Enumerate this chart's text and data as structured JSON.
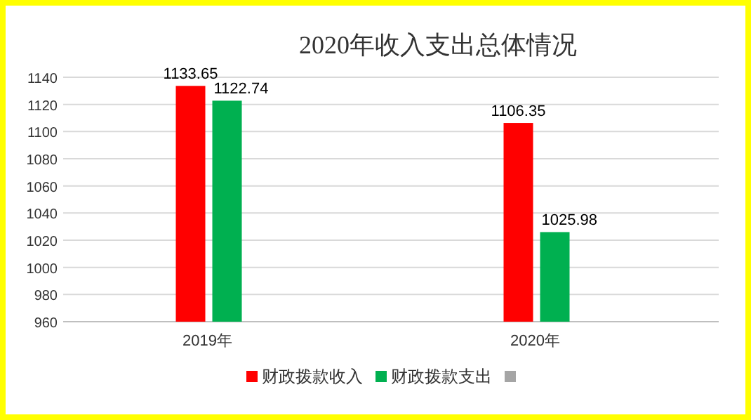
{
  "chart_data": {
    "type": "bar",
    "title": "2020年收入支出总体情况",
    "categories": [
      "2019年",
      "2020年"
    ],
    "series": [
      {
        "name": "财政拨款收入",
        "color": "#ff0000",
        "values": [
          1133.65,
          1106.35
        ]
      },
      {
        "name": "财政拨款支出",
        "color": "#00b050",
        "values": [
          1122.74,
          1025.98
        ]
      },
      {
        "color": "#a5a5a5",
        "values": [
          null,
          null
        ]
      }
    ],
    "ylim": [
      960,
      1140
    ],
    "yticks": [
      960,
      980,
      1000,
      1020,
      1040,
      1060,
      1080,
      1100,
      1120,
      1140
    ],
    "grid": "y",
    "legend": "bottom",
    "data_labels": true
  }
}
